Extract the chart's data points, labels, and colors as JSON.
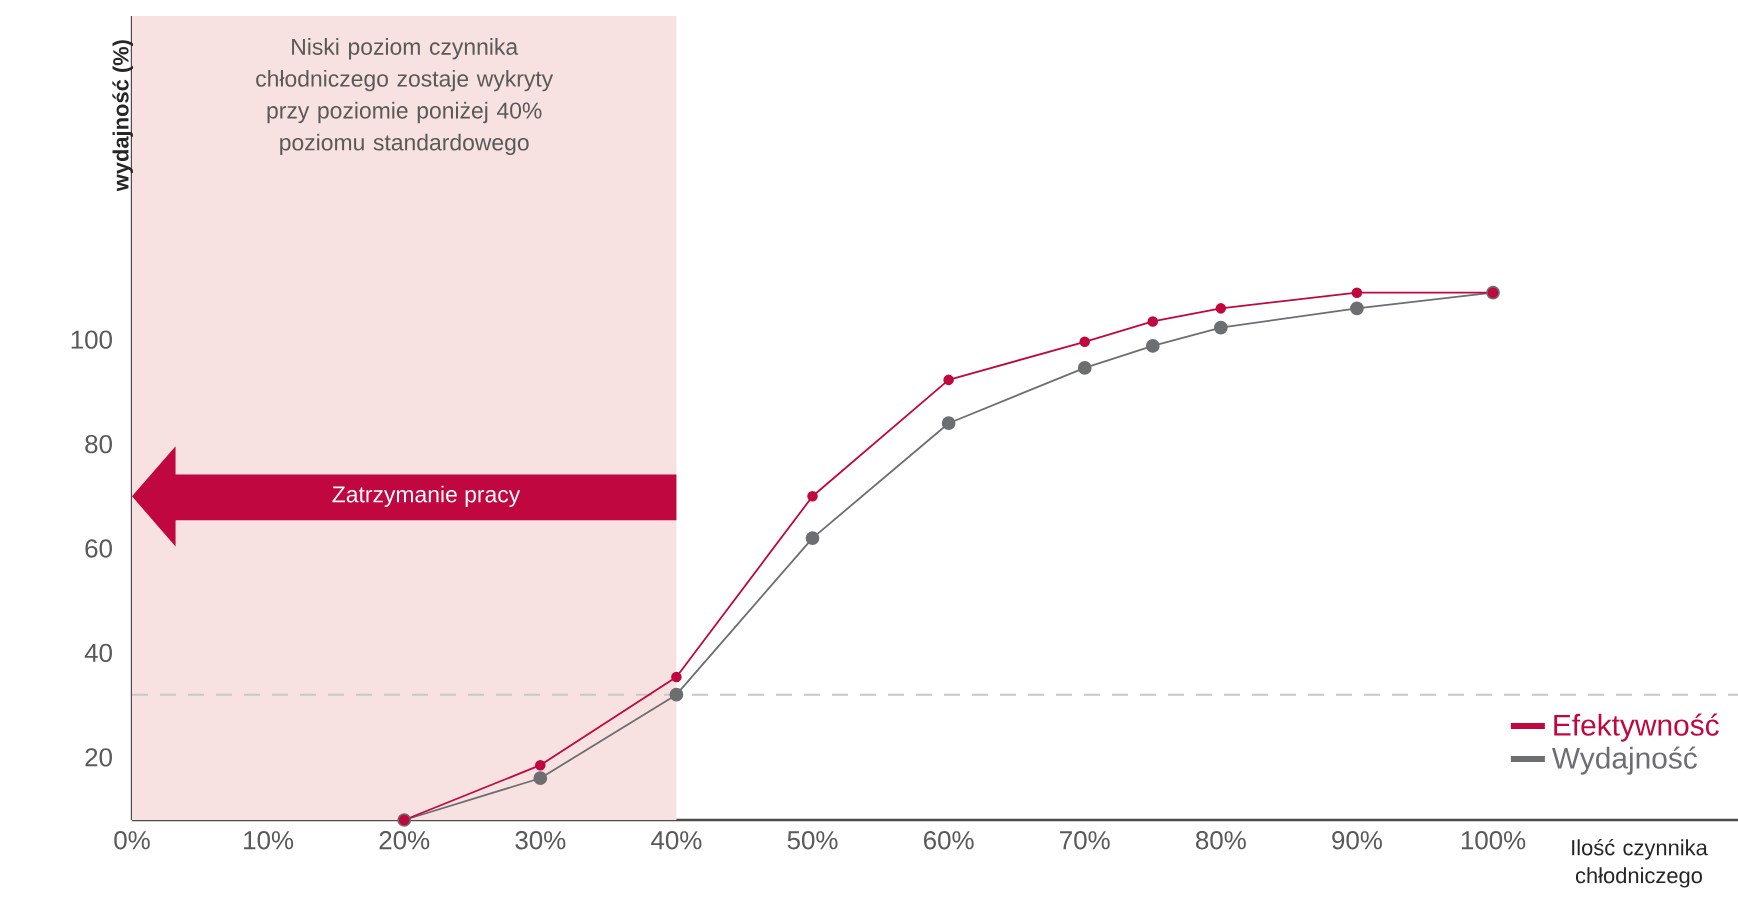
{
  "chart_data": {
    "type": "line",
    "xlabel": "Ilość czynnika chłodniczego",
    "ylabel": "wydajność (%)",
    "xlim": [
      0,
      118
    ],
    "ylim": [
      8,
      162
    ],
    "xticks": [
      {
        "value": 0,
        "label": "0%"
      },
      {
        "value": 10,
        "label": "10%"
      },
      {
        "value": 20,
        "label": "20%"
      },
      {
        "value": 30,
        "label": "30%"
      },
      {
        "value": 40,
        "label": "40%"
      },
      {
        "value": 50,
        "label": "50%"
      },
      {
        "value": 60,
        "label": "60%"
      },
      {
        "value": 70,
        "label": "70%"
      },
      {
        "value": 80,
        "label": "80%"
      },
      {
        "value": 90,
        "label": "90%"
      },
      {
        "value": 100,
        "label": "100%"
      }
    ],
    "yticks": [
      20,
      40,
      60,
      80,
      100
    ],
    "x": [
      20,
      30,
      40,
      50,
      60,
      70,
      75,
      80,
      90,
      100
    ],
    "series": [
      {
        "name": "Efektywność",
        "color": "#c0073f",
        "values": [
          8,
          18.5,
          35.4,
          70,
          92.3,
          99.6,
          103.5,
          106,
          109,
          109
        ]
      },
      {
        "name": "Wydajność",
        "color": "#6d6e71",
        "values": [
          8,
          16,
          32,
          62,
          84,
          94.6,
          98.8,
          102.3,
          106,
          109
        ]
      }
    ],
    "bands": [
      {
        "axis": "x",
        "from": 0,
        "to": 40,
        "label": "Niski poziom czynnika chłodniczego zostaje wykryty przy poziomie poniżej 40% poziomu standardowego",
        "color": "#f7e1e1"
      }
    ],
    "ref_lines": [
      {
        "axis": "y",
        "value": 32,
        "color": "#c8c8c8",
        "line_style": "dashed"
      }
    ],
    "annotations": [
      "Zatrzymanie pracy"
    ],
    "marker": "circle",
    "line_style": "solid",
    "grid": false,
    "legend": "bottom right"
  }
}
